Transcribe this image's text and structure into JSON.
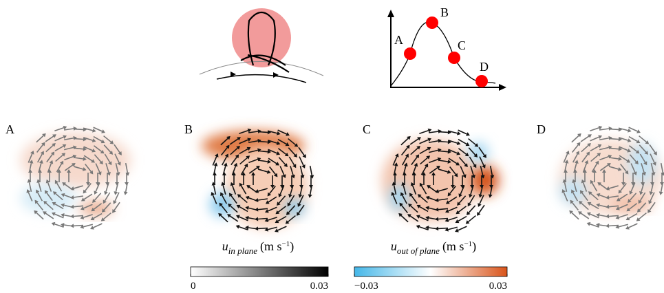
{
  "diagram": {
    "points": [
      "A",
      "B",
      "C",
      "D"
    ]
  },
  "panels": [
    {
      "label": "A"
    },
    {
      "label": "B"
    },
    {
      "label": "C"
    },
    {
      "label": "D"
    }
  ],
  "colorbars": [
    {
      "symbol": "u",
      "subscript": "in plane",
      "unit": "(m s",
      "exponent": "−1",
      "close": ")",
      "ticks": [
        0,
        0.03
      ]
    },
    {
      "symbol": "u",
      "subscript": "out of plane",
      "unit": "(m s",
      "exponent": "−1",
      "close": ")",
      "ticks": [
        {
          "value": -0.03,
          "label": "−0.03"
        },
        0.03
      ]
    }
  ]
}
